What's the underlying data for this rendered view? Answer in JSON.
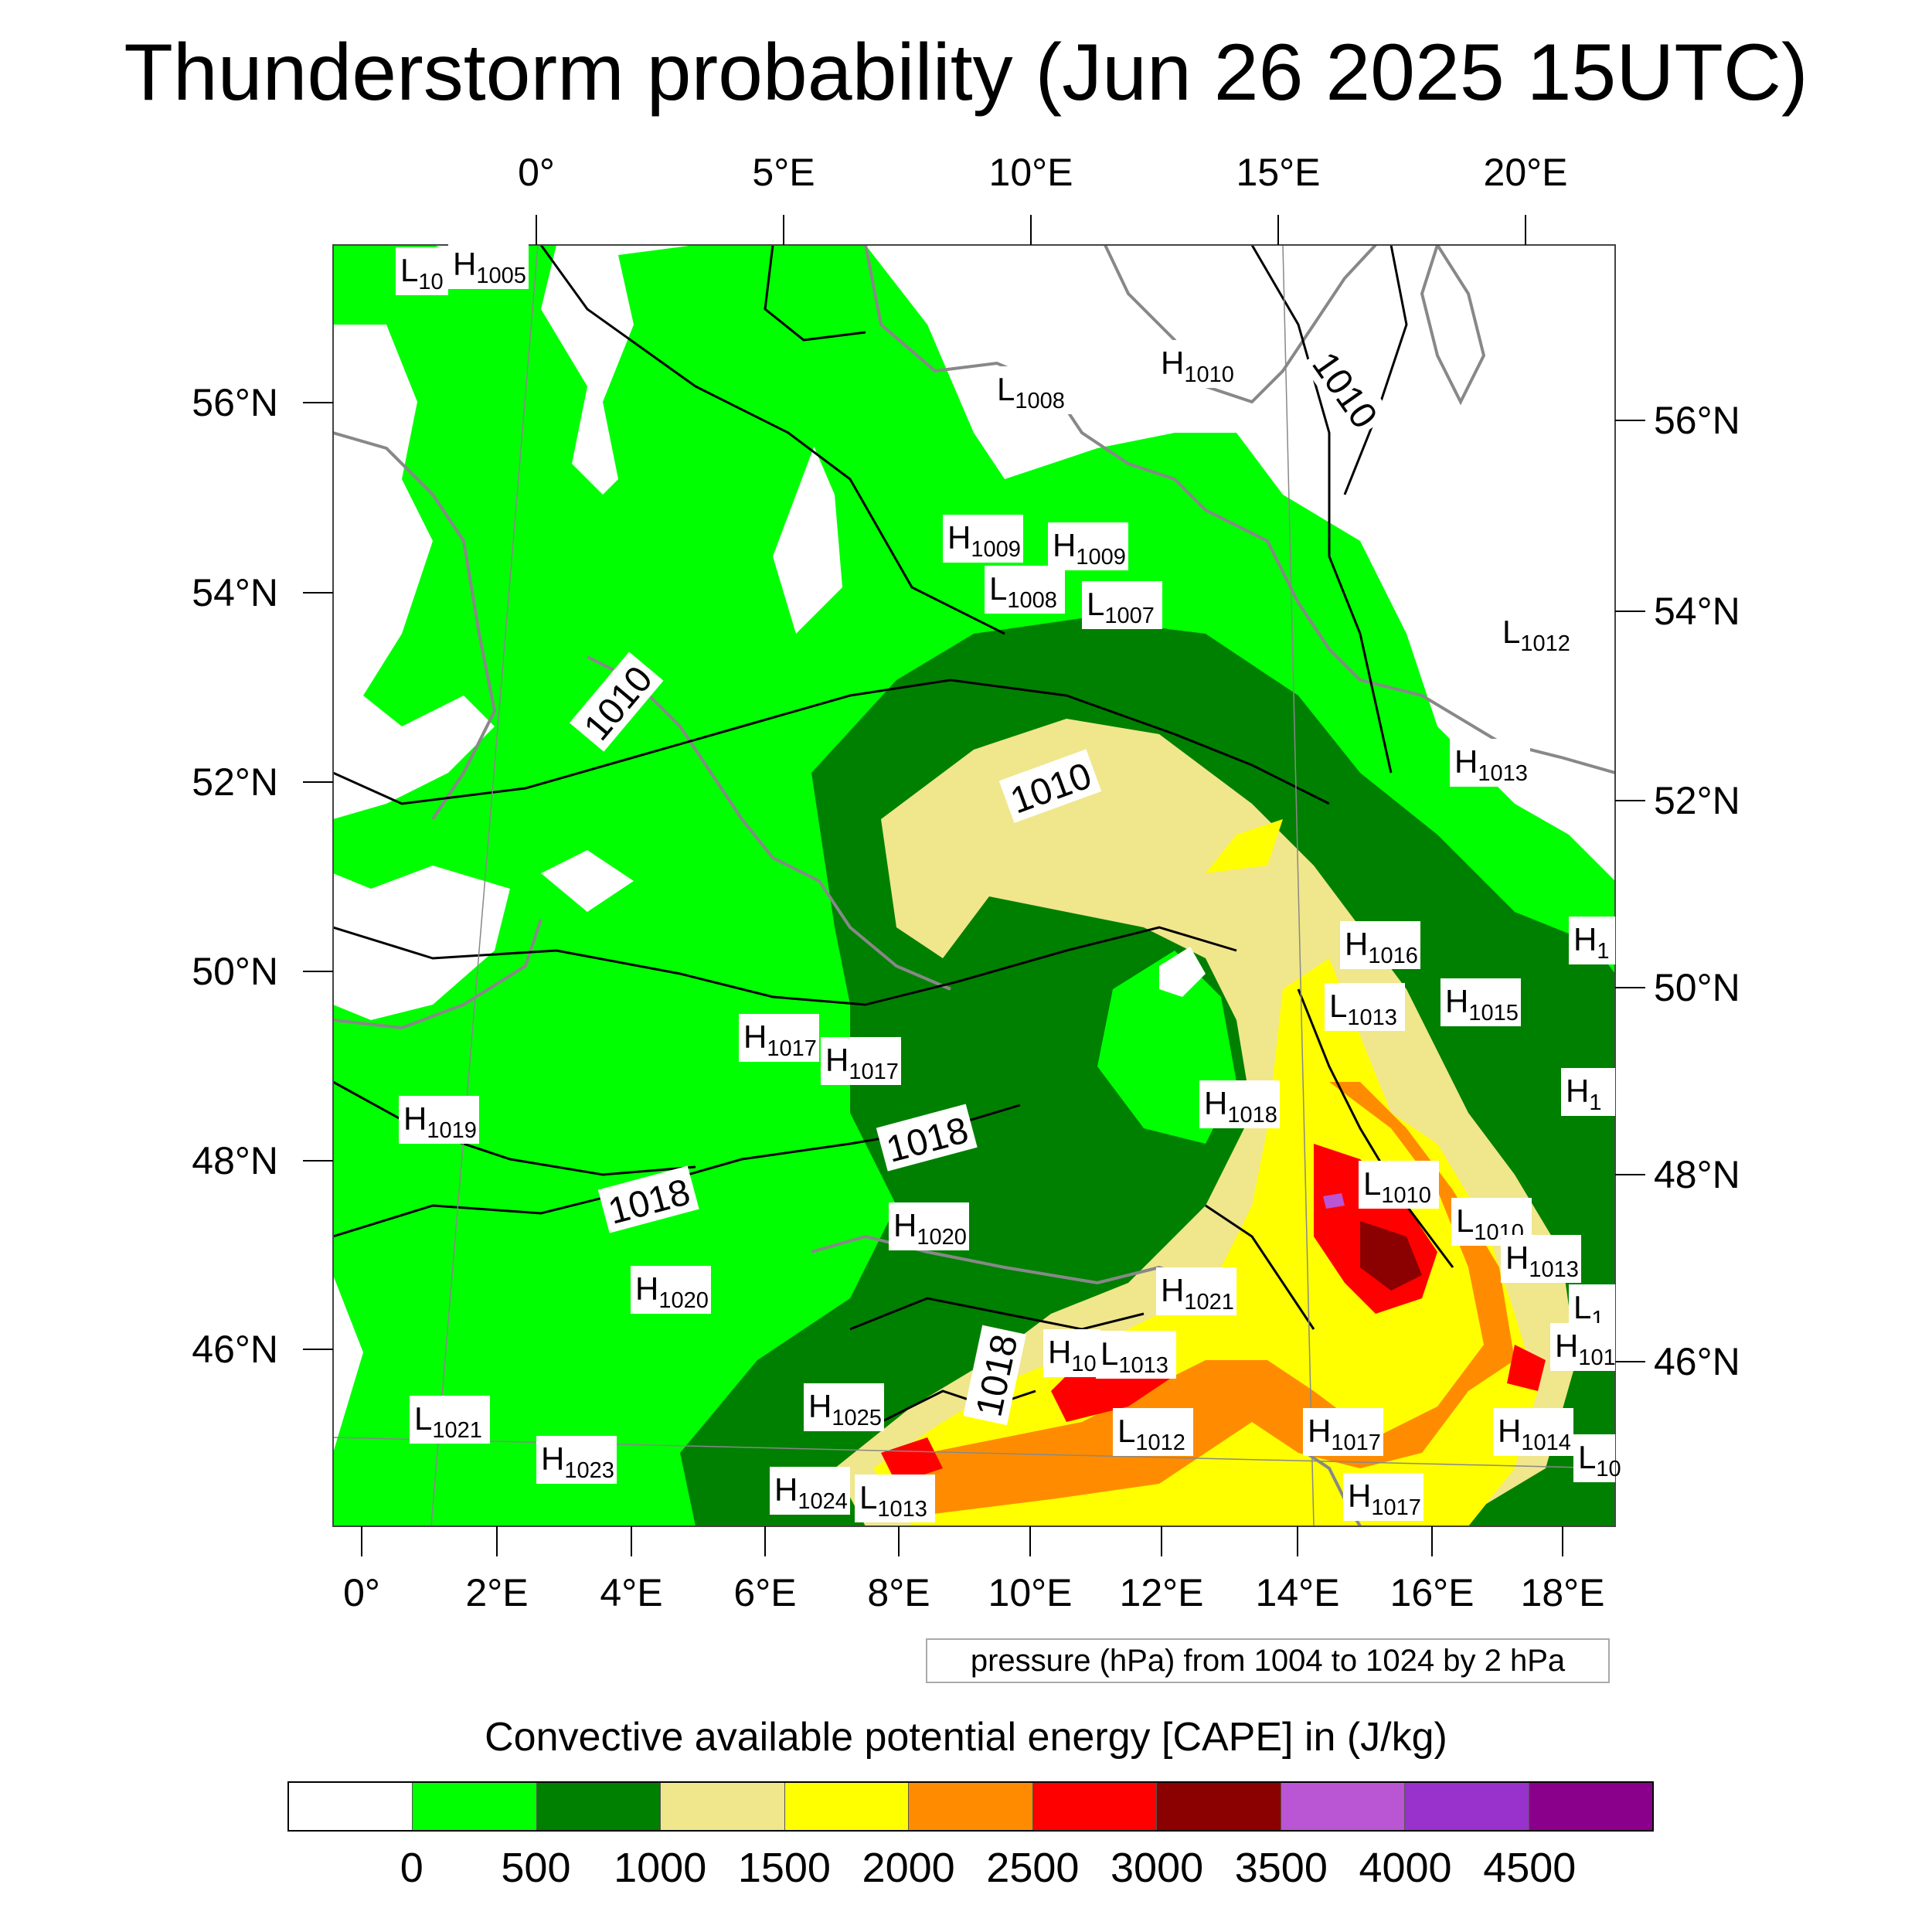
{
  "title": "Thunderstorm probability (Jun 26 2025 15UTC)",
  "top_lon_labels": [
    "0°",
    "5°E",
    "10°E",
    "15°E",
    "20°E"
  ],
  "bottom_lon_labels": [
    "0°",
    "2°E",
    "4°E",
    "6°E",
    "8°E",
    "10°E",
    "12°E",
    "14°E",
    "16°E",
    "18°E"
  ],
  "left_lat_labels": [
    "56°N",
    "54°N",
    "52°N",
    "50°N",
    "48°N",
    "46°N"
  ],
  "right_lat_labels": [
    "56°N",
    "54°N",
    "52°N",
    "50°N",
    "48°N",
    "46°N"
  ],
  "pressure_centers": [
    {
      "type": "L",
      "value": "10"
    },
    {
      "type": "H",
      "value": "1005"
    },
    {
      "type": "H",
      "value": "1010"
    },
    {
      "type": "L",
      "value": "1008"
    },
    {
      "type": "H",
      "value": "1009"
    },
    {
      "type": "H",
      "value": "1009"
    },
    {
      "type": "L",
      "value": "1008"
    },
    {
      "type": "L",
      "value": "1007"
    },
    {
      "type": "L",
      "value": "1012"
    },
    {
      "type": "H",
      "value": "1013"
    },
    {
      "type": "H",
      "value": "1"
    },
    {
      "type": "H",
      "value": "1016"
    },
    {
      "type": "L",
      "value": "1013"
    },
    {
      "type": "H",
      "value": "1015"
    },
    {
      "type": "H",
      "value": "1017"
    },
    {
      "type": "H",
      "value": "1017"
    },
    {
      "type": "H",
      "value": "1019"
    },
    {
      "type": "H",
      "value": "1018"
    },
    {
      "type": "H",
      "value": "1"
    },
    {
      "type": "L",
      "value": "1010"
    },
    {
      "type": "L",
      "value": "1010"
    },
    {
      "type": "H",
      "value": "1013"
    },
    {
      "type": "H",
      "value": "1020"
    },
    {
      "type": "H",
      "value": "1020"
    },
    {
      "type": "H",
      "value": "1021"
    },
    {
      "type": "L",
      "value": "1"
    },
    {
      "type": "H",
      "value": "101"
    },
    {
      "type": "H",
      "value": "10"
    },
    {
      "type": "L",
      "value": "1013"
    },
    {
      "type": "H",
      "value": "1025"
    },
    {
      "type": "L",
      "value": "1021"
    },
    {
      "type": "H",
      "value": "1023"
    },
    {
      "type": "L",
      "value": "1012"
    },
    {
      "type": "H",
      "value": "1017"
    },
    {
      "type": "H",
      "value": "1014"
    },
    {
      "type": "L",
      "value": "10"
    },
    {
      "type": "H",
      "value": "1024"
    },
    {
      "type": "L",
      "value": "1013"
    },
    {
      "type": "H",
      "value": "1017"
    }
  ],
  "isobar_labels": [
    "1010",
    "1010",
    "1010",
    "1018",
    "1018",
    "1018"
  ],
  "pressure_note": "pressure (hPa) from 1004 to 1024 by 2 hPa",
  "colorbar": {
    "title": "Convective available potential energy [CAPE] in (J/kg)",
    "colors": [
      "#ffffff",
      "#00ff00",
      "#008000",
      "#f0e68c",
      "#ffff00",
      "#ff8c00",
      "#ff0000",
      "#8b0000",
      "#ba55d3",
      "#9932cc",
      "#8b008b"
    ],
    "labels": [
      "0",
      "500",
      "1000",
      "1500",
      "2000",
      "2500",
      "3000",
      "3500",
      "4000",
      "4500"
    ]
  }
}
